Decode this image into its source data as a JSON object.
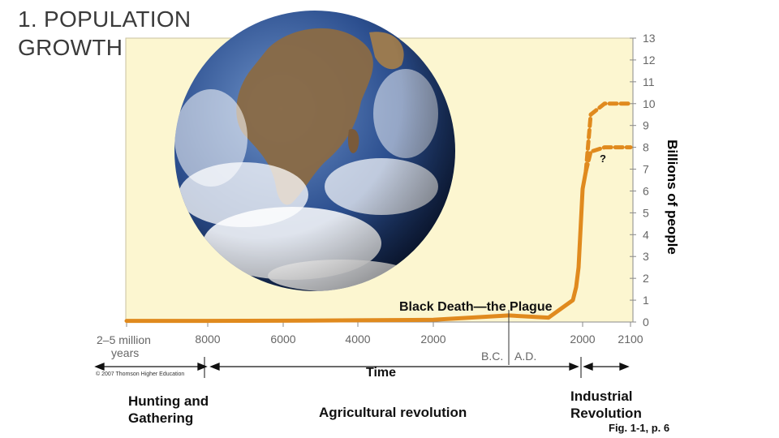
{
  "slide": {
    "title_line1": "1. POPULATION",
    "title_line2": "GROWTH"
  },
  "colors": {
    "plot_bg": "#fcf6d0",
    "curve": "#e08a1e",
    "axis": "#8a8a8a"
  },
  "chart_data": {
    "type": "line",
    "ylabel": "Billions of people",
    "xlabel": "Time",
    "ylim": [
      0,
      13
    ],
    "yticks": [
      0,
      1,
      2,
      3,
      4,
      5,
      6,
      7,
      8,
      9,
      10,
      11,
      12,
      13
    ],
    "xticks": [
      "2–5 million years",
      "8000",
      "6000",
      "4000",
      "2000",
      "2000",
      "2100"
    ],
    "era_marker": {
      "bc": "B.C.",
      "ad": "A.D."
    },
    "series": [
      {
        "x": [
          "2–5 million years",
          "8000 B.C.",
          "6000 B.C.",
          "4000 B.C.",
          "2000 B.C.",
          "1 A.D.",
          "1350 A.D.",
          "1800 A.D.",
          "1900 A.D.",
          "1950 A.D.",
          "2000 A.D.",
          "2010 A.D."
        ],
        "values": [
          0.05,
          0.05,
          0.06,
          0.08,
          0.1,
          0.3,
          0.2,
          1.0,
          1.6,
          2.5,
          6.1,
          6.9
        ]
      },
      {
        "style": "dashed",
        "x": [
          "2010 A.D.",
          "2025 A.D.",
          "2050 A.D.",
          "2100 A.D."
        ],
        "values": [
          6.9,
          7.8,
          8.0,
          8.0
        ]
      },
      {
        "style": "dashed",
        "x": [
          "2010 A.D.",
          "2025 A.D.",
          "2050 A.D.",
          "2100 A.D."
        ],
        "values": [
          6.9,
          9.5,
          10.0,
          10.0
        ]
      }
    ],
    "annotations": {
      "plague": "Black Death—the Plague",
      "question": "?"
    }
  },
  "eras": {
    "hunting": "Hunting and Gathering",
    "agricultural": "Agricultural revolution",
    "industrial": "Industrial Revolution"
  },
  "copyright": "© 2007 Thomson Higher Education",
  "figure_ref": "Fig. 1-1, p. 6"
}
